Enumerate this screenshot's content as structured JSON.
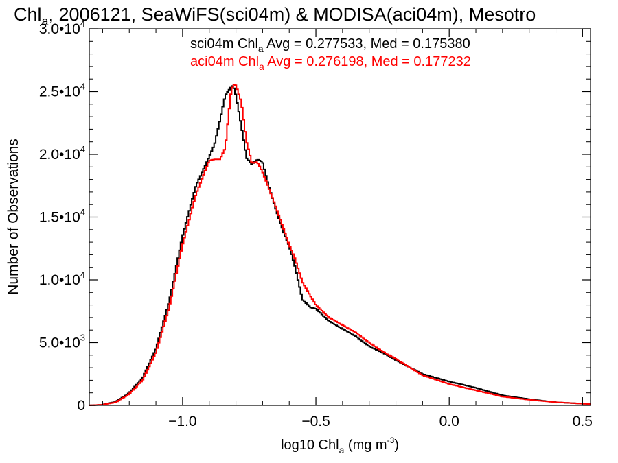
{
  "chart_data": {
    "type": "line",
    "title_parts": {
      "pre": "Chl",
      "sub": "a",
      "post": ", 2006121, SeaWiFS(sci04m) & MODISA(aci04m), Mesotro"
    },
    "xlabel_parts": {
      "pre": "log10 Chl",
      "sub": "a",
      "mid": " (mg m",
      "sup": "-3",
      "post": ")"
    },
    "ylabel": "Number of Observations",
    "xlim": [
      -1.35,
      0.53
    ],
    "ylim": [
      0,
      30000
    ],
    "xticks": [
      {
        "v": -1.0,
        "label": "−1.0"
      },
      {
        "v": -0.5,
        "label": "−0.5"
      },
      {
        "v": 0.0,
        "label": "0.0"
      },
      {
        "v": 0.5,
        "label": "0.5"
      }
    ],
    "yticks": [
      {
        "v": 0,
        "mant": "0",
        "exp": ""
      },
      {
        "v": 5000,
        "mant": "5.0•10",
        "exp": "3"
      },
      {
        "v": 10000,
        "mant": "1.0•10",
        "exp": "4"
      },
      {
        "v": 15000,
        "mant": "1.5•10",
        "exp": "4"
      },
      {
        "v": 20000,
        "mant": "2.0•10",
        "exp": "4"
      },
      {
        "v": 25000,
        "mant": "2.5•10",
        "exp": "4"
      },
      {
        "v": 30000,
        "mant": "3.0•10",
        "exp": "4"
      }
    ],
    "legend": [
      {
        "name": "sci04m",
        "color": "#000000",
        "pre": "sci04m Chl",
        "sub": "a",
        "post": " Avg = 0.277533, Med = 0.175380"
      },
      {
        "name": "aci04m",
        "color": "#ff0000",
        "pre": "aci04m Chl",
        "sub": "a",
        "post": " Avg = 0.276198, Med = 0.177232"
      }
    ],
    "series": [
      {
        "name": "sci04m",
        "color": "#000000",
        "x": [
          -1.35,
          -1.3,
          -1.25,
          -1.2,
          -1.15,
          -1.1,
          -1.05,
          -1.0,
          -0.95,
          -0.9,
          -0.88,
          -0.86,
          -0.84,
          -0.82,
          -0.81,
          -0.8,
          -0.78,
          -0.76,
          -0.74,
          -0.72,
          -0.7,
          -0.68,
          -0.65,
          -0.62,
          -0.6,
          -0.58,
          -0.55,
          -0.52,
          -0.5,
          -0.45,
          -0.4,
          -0.35,
          -0.3,
          -0.25,
          -0.2,
          -0.1,
          0.0,
          0.1,
          0.2,
          0.3,
          0.4,
          0.53
        ],
        "y": [
          0,
          50,
          300,
          1000,
          2200,
          4500,
          8300,
          13500,
          17500,
          19800,
          20800,
          22700,
          24700,
          25300,
          25500,
          24700,
          22300,
          19700,
          19200,
          19600,
          19400,
          17700,
          15600,
          13700,
          12700,
          11200,
          8400,
          7800,
          7700,
          6700,
          6100,
          5500,
          4700,
          4200,
          3600,
          2500,
          1900,
          1400,
          800,
          500,
          250,
          100
        ]
      },
      {
        "name": "aci04m",
        "color": "#ff0000",
        "x": [
          -1.35,
          -1.3,
          -1.25,
          -1.2,
          -1.15,
          -1.1,
          -1.05,
          -1.0,
          -0.95,
          -0.9,
          -0.88,
          -0.86,
          -0.84,
          -0.82,
          -0.81,
          -0.8,
          -0.78,
          -0.76,
          -0.74,
          -0.72,
          -0.7,
          -0.68,
          -0.65,
          -0.62,
          -0.6,
          -0.58,
          -0.55,
          -0.52,
          -0.5,
          -0.45,
          -0.4,
          -0.35,
          -0.3,
          -0.25,
          -0.2,
          -0.1,
          0.0,
          0.1,
          0.2,
          0.3,
          0.4,
          0.53
        ],
        "y": [
          0,
          50,
          250,
          900,
          2000,
          4200,
          7800,
          12800,
          16800,
          19500,
          19600,
          19600,
          20500,
          24700,
          25600,
          25500,
          24200,
          21000,
          19300,
          19400,
          18600,
          17500,
          15800,
          14000,
          12800,
          11800,
          9800,
          8700,
          8000,
          7000,
          6400,
          5800,
          5000,
          4300,
          3700,
          2400,
          1700,
          1200,
          700,
          450,
          250,
          100
        ]
      }
    ]
  }
}
